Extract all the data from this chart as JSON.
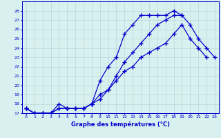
{
  "xlabel": "Graphe des températures (°C)",
  "x": [
    0,
    1,
    2,
    3,
    4,
    5,
    6,
    7,
    8,
    9,
    10,
    11,
    12,
    13,
    14,
    15,
    16,
    17,
    18,
    19,
    20,
    21,
    22,
    23
  ],
  "line1": [
    17.5,
    17.0,
    17.0,
    17.0,
    18.0,
    17.5,
    17.5,
    17.5,
    18.0,
    20.5,
    22.0,
    23.0,
    25.5,
    26.5,
    27.5,
    27.5,
    27.5,
    27.5,
    28.0,
    27.5,
    null,
    null,
    null,
    null
  ],
  "line2": [
    17.5,
    17.0,
    17.0,
    17.0,
    17.5,
    17.5,
    17.5,
    17.5,
    18.0,
    18.5,
    19.5,
    21.0,
    22.5,
    23.5,
    24.5,
    25.5,
    26.5,
    27.0,
    27.5,
    27.5,
    26.5,
    25.0,
    24.0,
    23.0
  ],
  "line3": [
    17.5,
    17.0,
    17.0,
    17.0,
    17.5,
    17.5,
    17.5,
    17.5,
    18.0,
    19.0,
    19.5,
    20.5,
    21.5,
    22.0,
    23.0,
    23.5,
    24.0,
    24.5,
    25.5,
    26.5,
    25.0,
    24.0,
    23.0,
    null
  ],
  "line_color": "#0000cc",
  "bg_color": "#d8f0f0",
  "grid_color": "#b8d8d8",
  "ylim": [
    17,
    29
  ],
  "yticks": [
    17,
    18,
    19,
    20,
    21,
    22,
    23,
    24,
    25,
    26,
    27,
    28
  ],
  "xticks": [
    0,
    1,
    2,
    3,
    4,
    5,
    6,
    7,
    8,
    9,
    10,
    11,
    12,
    13,
    14,
    15,
    16,
    17,
    18,
    19,
    20,
    21,
    22,
    23
  ],
  "marker": "+",
  "markersize": 4,
  "linewidth": 0.9
}
